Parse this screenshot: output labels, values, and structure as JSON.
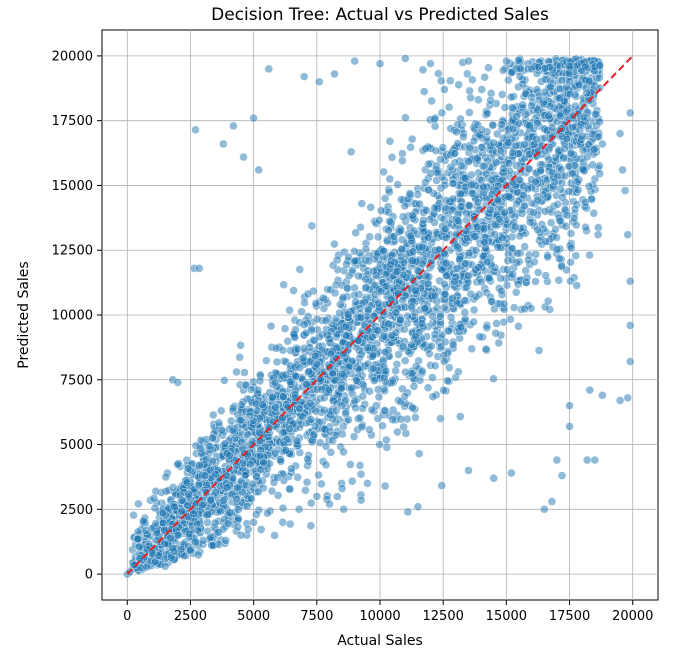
{
  "chart_data": {
    "type": "scatter",
    "title": "Decision Tree: Actual vs Predicted Sales",
    "xlabel": "Actual Sales",
    "ylabel": "Predicted Sales",
    "xlim": [
      -1000,
      21000
    ],
    "ylim": [
      -1000,
      21000
    ],
    "xticks": [
      "0",
      "2500",
      "5000",
      "7500",
      "10000",
      "12500",
      "15000",
      "17500",
      "20000"
    ],
    "yticks": [
      "0",
      "2500",
      "5000",
      "7500",
      "10000",
      "12500",
      "15000",
      "17500",
      "20000"
    ],
    "grid": true,
    "point_color": "#1f77b4",
    "point_alpha": 0.5,
    "reference_line": {
      "from": [
        0,
        0
      ],
      "to": [
        20000,
        20000
      ],
      "color": "#e8211f",
      "style": "dashed"
    },
    "series": [
      {
        "points": [
          [
            0,
            0
          ],
          [
            100,
            80
          ],
          [
            300,
            350
          ],
          [
            500,
            600
          ],
          [
            800,
            950
          ],
          [
            1800,
            7500
          ],
          [
            2000,
            7400
          ],
          [
            2700,
            17150
          ],
          [
            2650,
            11800
          ],
          [
            2850,
            11800
          ],
          [
            3800,
            16600
          ],
          [
            4200,
            17300
          ],
          [
            4600,
            16100
          ],
          [
            5000,
            17600
          ],
          [
            5200,
            15600
          ],
          [
            5600,
            19500
          ],
          [
            7000,
            19200
          ],
          [
            7600,
            19000
          ],
          [
            8200,
            19300
          ],
          [
            9000,
            19800
          ],
          [
            10000,
            19700
          ],
          [
            11000,
            19900
          ],
          [
            12000,
            19700
          ],
          [
            13500,
            19800
          ],
          [
            15000,
            19800
          ],
          [
            16000,
            19500
          ],
          [
            17500,
            19600
          ],
          [
            16300,
            18300
          ],
          [
            18000,
            16900
          ],
          [
            18800,
            16600
          ],
          [
            19500,
            17000
          ],
          [
            19900,
            17800
          ],
          [
            19600,
            15600
          ],
          [
            19700,
            14800
          ],
          [
            19800,
            13100
          ],
          [
            19900,
            11300
          ],
          [
            19900,
            9600
          ],
          [
            19900,
            8200
          ],
          [
            19800,
            6800
          ],
          [
            19500,
            6700
          ],
          [
            18800,
            6900
          ],
          [
            18300,
            7100
          ],
          [
            17500,
            6500
          ],
          [
            17500,
            5700
          ],
          [
            17000,
            4400
          ],
          [
            17200,
            3800
          ],
          [
            18200,
            4400
          ],
          [
            18500,
            4400
          ],
          [
            16500,
            2500
          ],
          [
            16800,
            2800
          ],
          [
            15200,
            3900
          ],
          [
            14500,
            3700
          ],
          [
            11100,
            2400
          ],
          [
            11500,
            2600
          ],
          [
            10200,
            3400
          ],
          [
            9500,
            3500
          ],
          [
            7500,
            3000
          ],
          [
            6800,
            2500
          ],
          [
            5000,
            2000
          ],
          [
            4500,
            1500
          ],
          [
            3900,
            1300
          ],
          [
            2000,
            1500
          ],
          [
            3000,
            1300
          ],
          [
            1500,
            300
          ],
          [
            2500,
            900
          ],
          [
            2800,
            1700
          ],
          [
            3400,
            1100
          ],
          [
            8000,
            2700
          ],
          [
            8500,
            3300
          ],
          [
            13500,
            4000
          ]
        ]
      }
    ]
  }
}
